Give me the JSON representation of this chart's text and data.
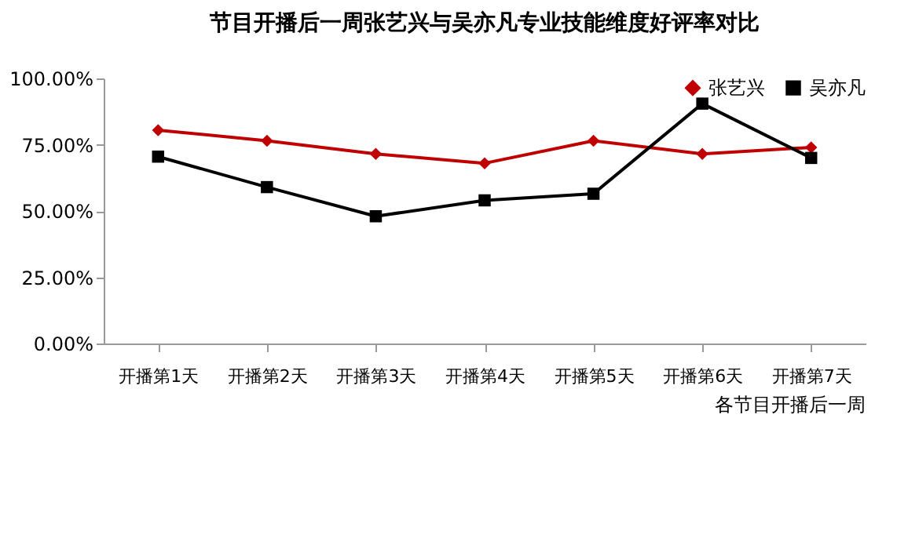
{
  "chart_data": {
    "type": "line",
    "title": "节目开播后一周张艺兴与吴亦凡专业技能维度好评率对比",
    "categories": [
      "开播第1天",
      "开播第2天",
      "开播第3天",
      "开播第4天",
      "开播第5天",
      "开播第6天",
      "开播第7天"
    ],
    "series": [
      {
        "name": "张艺兴",
        "color": "#c00000",
        "marker": "diamond",
        "values": [
          80.5,
          76.5,
          71.5,
          68,
          76.5,
          71.5,
          74
        ]
      },
      {
        "name": "吴亦凡",
        "color": "#000000",
        "marker": "square",
        "values": [
          70.5,
          59,
          48,
          54,
          56.5,
          90.5,
          70
        ]
      }
    ],
    "ylim": [
      0,
      100
    ],
    "yticks": [
      {
        "value": 0,
        "label": "0.00%"
      },
      {
        "value": 25,
        "label": "25.00%"
      },
      {
        "value": 50,
        "label": "50.00%"
      },
      {
        "value": 75,
        "label": "75.00%"
      },
      {
        "value": 100,
        "label": "100.00%"
      }
    ],
    "grid": false,
    "legend": "top right",
    "annotations": [
      "各节目开播后一周"
    ]
  }
}
